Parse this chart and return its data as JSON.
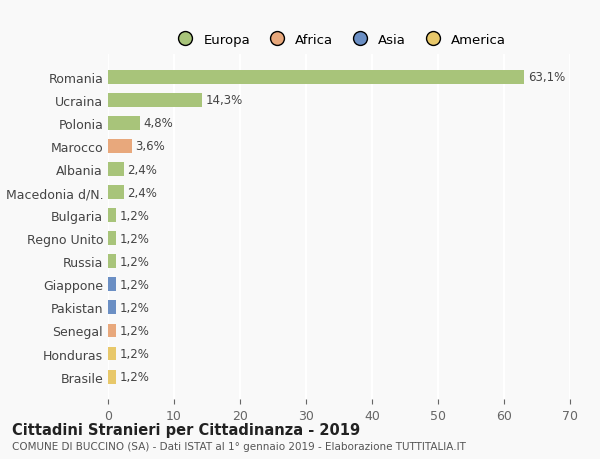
{
  "categories": [
    "Romania",
    "Ucraina",
    "Polonia",
    "Marocco",
    "Albania",
    "Macedonia d/N.",
    "Bulgaria",
    "Regno Unito",
    "Russia",
    "Giappone",
    "Pakistan",
    "Senegal",
    "Honduras",
    "Brasile"
  ],
  "values": [
    63.1,
    14.3,
    4.8,
    3.6,
    2.4,
    2.4,
    1.2,
    1.2,
    1.2,
    1.2,
    1.2,
    1.2,
    1.2,
    1.2
  ],
  "labels": [
    "63,1%",
    "14,3%",
    "4,8%",
    "3,6%",
    "2,4%",
    "2,4%",
    "1,2%",
    "1,2%",
    "1,2%",
    "1,2%",
    "1,2%",
    "1,2%",
    "1,2%",
    "1,2%"
  ],
  "colors": [
    "#a8c47a",
    "#a8c47a",
    "#a8c47a",
    "#e8a87c",
    "#a8c47a",
    "#a8c47a",
    "#a8c47a",
    "#a8c47a",
    "#a8c47a",
    "#6b8fc4",
    "#6b8fc4",
    "#e8a87c",
    "#e8c86a",
    "#e8c86a"
  ],
  "legend_names": [
    "Europa",
    "Africa",
    "Asia",
    "America"
  ],
  "legend_colors": [
    "#a8c47a",
    "#e8a87c",
    "#6b8fc4",
    "#e8c86a"
  ],
  "title": "Cittadini Stranieri per Cittadinanza - 2019",
  "subtitle": "COMUNE DI BUCCINO (SA) - Dati ISTAT al 1° gennaio 2019 - Elaborazione TUTTITALIA.IT",
  "xlim": [
    0,
    70
  ],
  "xticks": [
    0,
    10,
    20,
    30,
    40,
    50,
    60,
    70
  ],
  "background_color": "#f9f9f9",
  "grid_color": "#ffffff"
}
